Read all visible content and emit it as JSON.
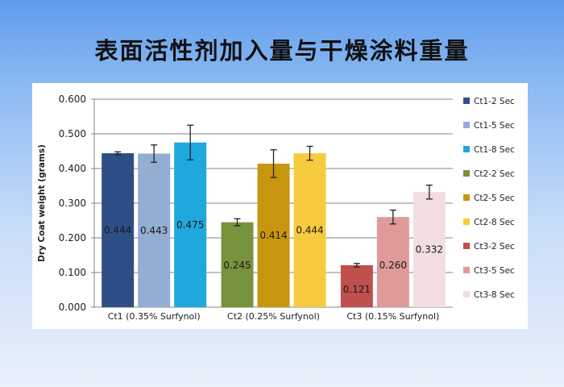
{
  "slide": {
    "title": "表面活性剂加入量与干燥涂料重量"
  },
  "chart_data": {
    "type": "bar",
    "ylabel": "Dry Coat weight (grams)",
    "ylim": [
      0,
      0.6
    ],
    "yticks": [
      "0.000",
      "0.100",
      "0.200",
      "0.300",
      "0.400",
      "0.500",
      "0.600"
    ],
    "groups": [
      "Ct1 (0.35% Surfynol)",
      "Ct2 (0.25% Surfynol)",
      "Ct3 (0.15% Surfynol)"
    ],
    "series": [
      {
        "name": "Ct1-2 Sec",
        "group": 0,
        "value": 0.444,
        "label": "0.444",
        "err": 0.004,
        "color": "#2d4f86"
      },
      {
        "name": "Ct1-5 Sec",
        "group": 0,
        "value": 0.443,
        "label": "0.443",
        "err": 0.025,
        "color": "#94add3"
      },
      {
        "name": "Ct1-8 Sec",
        "group": 0,
        "value": 0.475,
        "label": "0.475",
        "err": 0.05,
        "color": "#1ea8dd"
      },
      {
        "name": "Ct2-2 Sec",
        "group": 1,
        "value": 0.245,
        "label": "0.245",
        "err": 0.01,
        "color": "#77933c"
      },
      {
        "name": "Ct2-5 Sec",
        "group": 1,
        "value": 0.414,
        "label": "0.414",
        "err": 0.04,
        "color": "#c8960e"
      },
      {
        "name": "Ct2-8 Sec",
        "group": 1,
        "value": 0.444,
        "label": "0.444",
        "err": 0.02,
        "color": "#f6cb3e"
      },
      {
        "name": "Ct3-2 Sec",
        "group": 2,
        "value": 0.121,
        "label": "0.121",
        "err": 0.005,
        "color": "#c0504d"
      },
      {
        "name": "Ct3-5 Sec",
        "group": 2,
        "value": 0.26,
        "label": "0.260",
        "err": 0.02,
        "color": "#df9a9a"
      },
      {
        "name": "Ct3-8 Sec",
        "group": 2,
        "value": 0.332,
        "label": "0.332",
        "err": 0.02,
        "color": "#f2dede"
      }
    ],
    "legend": "right",
    "grid": true
  }
}
